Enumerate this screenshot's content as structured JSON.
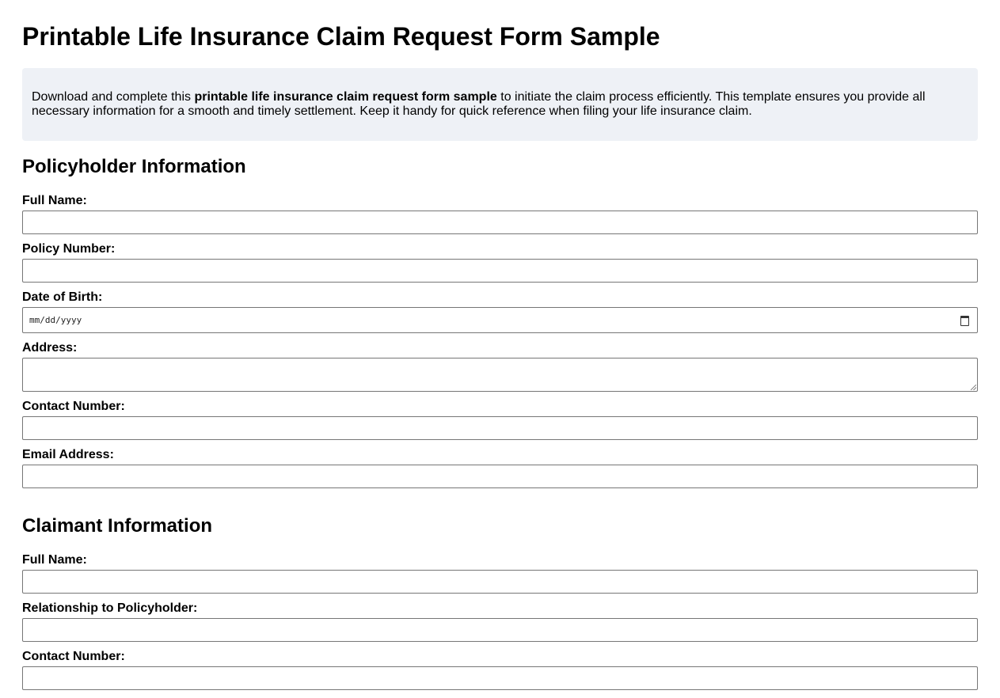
{
  "title": "Printable Life Insurance Claim Request Form Sample",
  "intro": {
    "before": "Download and complete this ",
    "bold": "printable life insurance claim request form sample",
    "after": " to initiate the claim process efficiently. This template ensures you provide all necessary information for a smooth and timely settlement. Keep it handy for quick reference when filing your life insurance claim."
  },
  "policyholder": {
    "heading": "Policyholder Information",
    "full_name": "Full Name:",
    "policy_number": "Policy Number:",
    "dob": "Date of Birth:",
    "dob_placeholder": "mm/dd/yyyy",
    "address": "Address:",
    "contact": "Contact Number:",
    "email": "Email Address:"
  },
  "claimant": {
    "heading": "Claimant Information",
    "full_name": "Full Name:",
    "relationship": "Relationship to Policyholder:",
    "contact": "Contact Number:"
  },
  "icons": {
    "date": "calendar-icon",
    "textarea": "resize-grip-icon"
  }
}
